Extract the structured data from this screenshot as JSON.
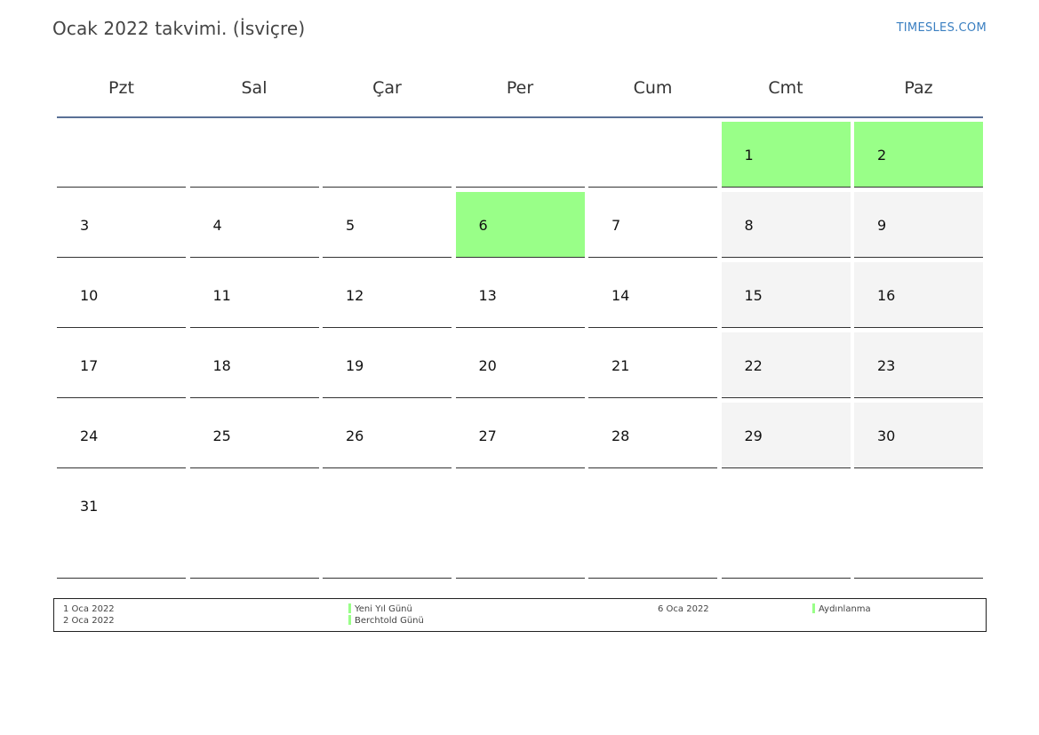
{
  "title": "Ocak 2022 takvimi. (İsviçre)",
  "brand": "TIMESLES.COM",
  "weekdays": [
    "Pzt",
    "Sal",
    "Çar",
    "Per",
    "Cum",
    "Cmt",
    "Paz"
  ],
  "weeks": [
    [
      {
        "day": "",
        "type": "empty"
      },
      {
        "day": "",
        "type": "empty"
      },
      {
        "day": "",
        "type": "empty"
      },
      {
        "day": "",
        "type": "empty"
      },
      {
        "day": "",
        "type": "empty"
      },
      {
        "day": "1",
        "type": "holiday"
      },
      {
        "day": "2",
        "type": "holiday"
      }
    ],
    [
      {
        "day": "3",
        "type": "normal"
      },
      {
        "day": "4",
        "type": "normal"
      },
      {
        "day": "5",
        "type": "normal"
      },
      {
        "day": "6",
        "type": "holiday"
      },
      {
        "day": "7",
        "type": "normal"
      },
      {
        "day": "8",
        "type": "weekend"
      },
      {
        "day": "9",
        "type": "weekend"
      }
    ],
    [
      {
        "day": "10",
        "type": "normal"
      },
      {
        "day": "11",
        "type": "normal"
      },
      {
        "day": "12",
        "type": "normal"
      },
      {
        "day": "13",
        "type": "normal"
      },
      {
        "day": "14",
        "type": "normal"
      },
      {
        "day": "15",
        "type": "weekend"
      },
      {
        "day": "16",
        "type": "weekend"
      }
    ],
    [
      {
        "day": "17",
        "type": "normal"
      },
      {
        "day": "18",
        "type": "normal"
      },
      {
        "day": "19",
        "type": "normal"
      },
      {
        "day": "20",
        "type": "normal"
      },
      {
        "day": "21",
        "type": "normal"
      },
      {
        "day": "22",
        "type": "weekend"
      },
      {
        "day": "23",
        "type": "weekend"
      }
    ],
    [
      {
        "day": "24",
        "type": "normal"
      },
      {
        "day": "25",
        "type": "normal"
      },
      {
        "day": "26",
        "type": "normal"
      },
      {
        "day": "27",
        "type": "normal"
      },
      {
        "day": "28",
        "type": "normal"
      },
      {
        "day": "29",
        "type": "weekend"
      },
      {
        "day": "30",
        "type": "weekend"
      }
    ],
    [
      {
        "day": "31",
        "type": "normal"
      },
      {
        "day": "",
        "type": "empty"
      },
      {
        "day": "",
        "type": "empty"
      },
      {
        "day": "",
        "type": "empty"
      },
      {
        "day": "",
        "type": "empty"
      },
      {
        "day": "",
        "type": "empty"
      },
      {
        "day": "",
        "type": "empty"
      }
    ]
  ],
  "holidays": [
    {
      "date": "1 Oca 2022",
      "name": "Yeni Yıl Günü"
    },
    {
      "date": "2 Oca 2022",
      "name": "Berchtold Günü"
    },
    {
      "date": "6 Oca 2022",
      "name": "Aydınlanma"
    }
  ],
  "colors": {
    "holiday": "#99ff88",
    "weekend": "#f4f4f4",
    "header_rule": "#5a7096",
    "brand": "#3a7fc1"
  }
}
